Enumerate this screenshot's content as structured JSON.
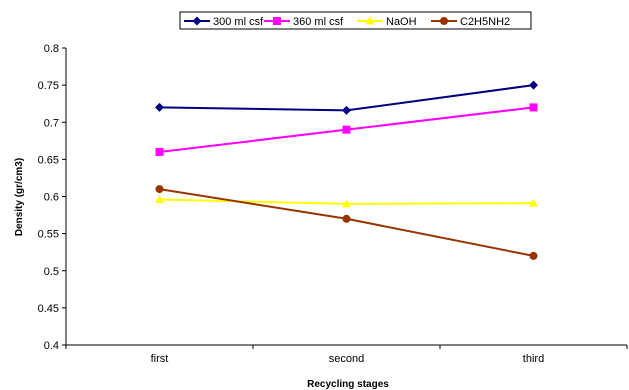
{
  "chart_data": {
    "type": "line",
    "categories": [
      "first",
      "second",
      "third"
    ],
    "xlabel": "Recycling stages",
    "ylabel": "Density (gr/cm3)",
    "ylim": [
      0.4,
      0.8
    ],
    "yticks": [
      0.4,
      0.45,
      0.5,
      0.55,
      0.6,
      0.65,
      0.7,
      0.75,
      0.8
    ],
    "ytick_labels": [
      "0.4",
      "0.45",
      "0.5",
      "0.55",
      "0.6",
      "0.65",
      "0.7",
      "0.75",
      "0.8"
    ],
    "grid": false,
    "legend_position": "top",
    "series": [
      {
        "name": "300 ml csf",
        "values": [
          0.72,
          0.716,
          0.75
        ],
        "color": "#000080",
        "marker": "diamond"
      },
      {
        "name": "360 ml csf",
        "values": [
          0.66,
          0.69,
          0.72
        ],
        "color": "#ff00ff",
        "marker": "square"
      },
      {
        "name": "NaOH",
        "values": [
          0.596,
          0.59,
          0.591
        ],
        "color": "#ffff00",
        "marker": "triangle"
      },
      {
        "name": "C2H5NH2",
        "values": [
          0.61,
          0.57,
          0.52
        ],
        "color": "#993300",
        "marker": "circle"
      }
    ]
  }
}
